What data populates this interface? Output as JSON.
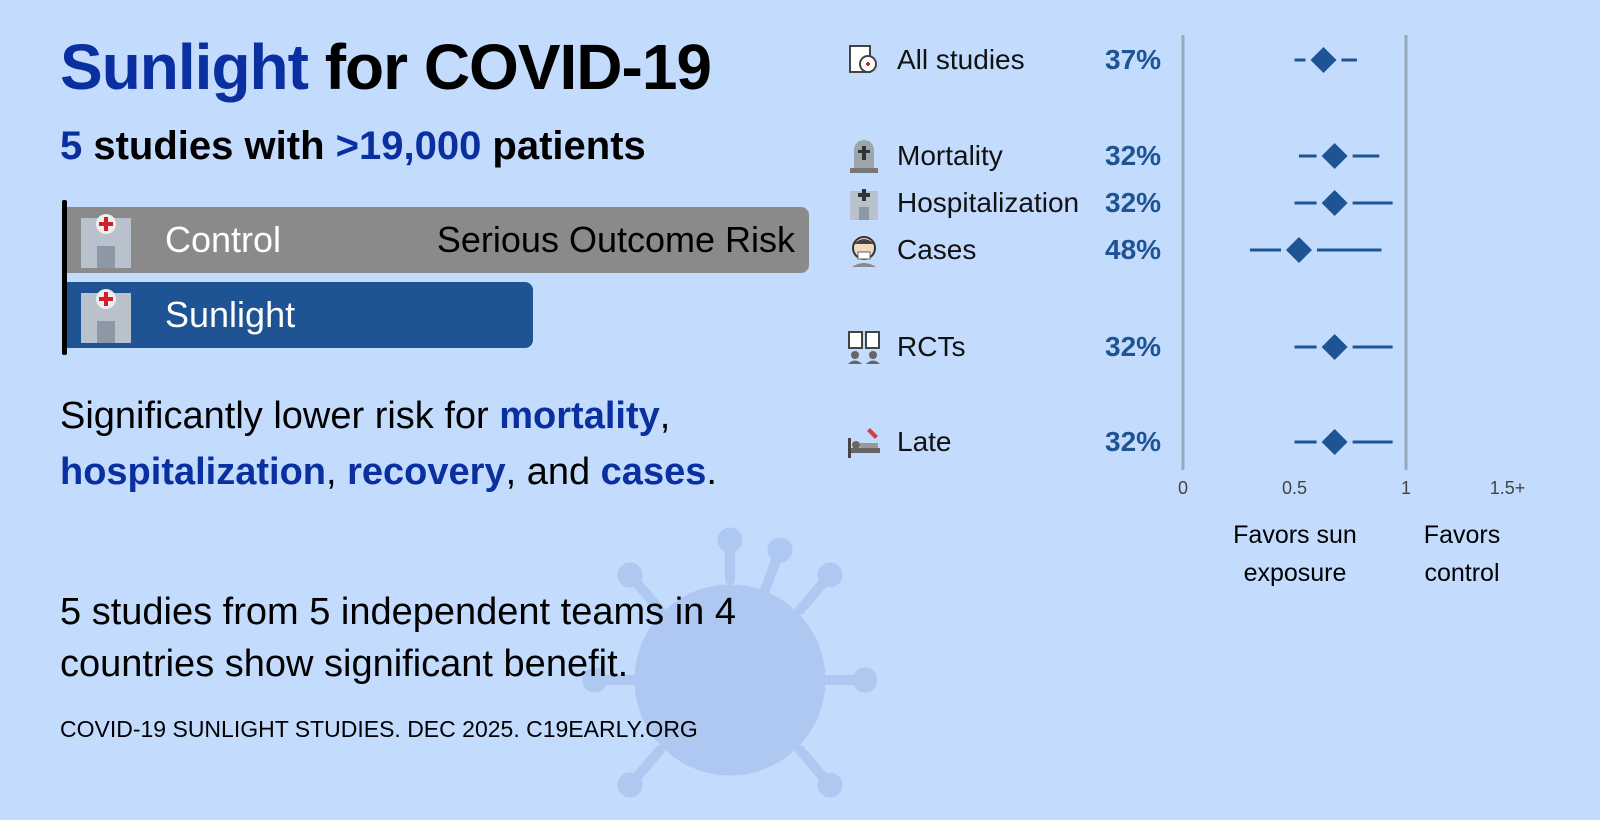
{
  "title": {
    "highlight": "Sunlight",
    "rest": " for COVID-19"
  },
  "subtitle": {
    "studies": "5",
    "mid": " studies with ",
    "patients": ">19,000",
    "end": " patients"
  },
  "bars": {
    "control_label": "Control",
    "outcome_label": "Serious Outcome Risk",
    "treatment_label": "Sunlight",
    "icon": "hospital-icon",
    "control_color": "#8a8a8a",
    "treatment_color": "#1e5494",
    "treatment_relative_risk": 0.63
  },
  "summary": {
    "p1": "Significantly lower risk for ",
    "k1": "mortality",
    "p2": ", ",
    "k2": "hospitalization",
    "p3": ", ",
    "k3": "recovery",
    "p4": ", and ",
    "k4": "cases",
    "p5": "."
  },
  "teams": "5 studies from 5 independent teams in 4 countries show significant benefit.",
  "footer": "COVID-19 SUNLIGHT STUDIES. DEC 2025. C19EARLY.ORG",
  "chart_data": {
    "type": "forest",
    "x_ticks": [
      "0",
      "0.5",
      "1",
      "1.5+"
    ],
    "xlim": [
      0,
      1.5
    ],
    "reference_line": 1,
    "favors_left": "Favors sun exposure",
    "favors_right": "Favors control",
    "color": "#1e5494",
    "rows": [
      {
        "label": "All studies",
        "icon": "study-documents-icon",
        "pct": "37%",
        "estimate": 0.63,
        "ci": [
          0.5,
          0.78
        ]
      },
      {
        "label": "Mortality",
        "icon": "tombstone-icon",
        "pct": "32%",
        "estimate": 0.68,
        "ci": [
          0.52,
          0.88
        ]
      },
      {
        "label": "Hospitalization",
        "icon": "hospital-icon",
        "pct": "32%",
        "estimate": 0.68,
        "ci": [
          0.5,
          0.94
        ]
      },
      {
        "label": "Cases",
        "icon": "sick-person-icon",
        "pct": "48%",
        "estimate": 0.52,
        "ci": [
          0.3,
          0.89
        ]
      },
      {
        "label": "RCTs",
        "icon": "ab-test-icon",
        "pct": "32%",
        "estimate": 0.68,
        "ci": [
          0.5,
          0.94
        ]
      },
      {
        "label": "Late",
        "icon": "hospital-bed-icon",
        "pct": "32%",
        "estimate": 0.68,
        "ci": [
          0.5,
          0.94
        ]
      }
    ]
  }
}
